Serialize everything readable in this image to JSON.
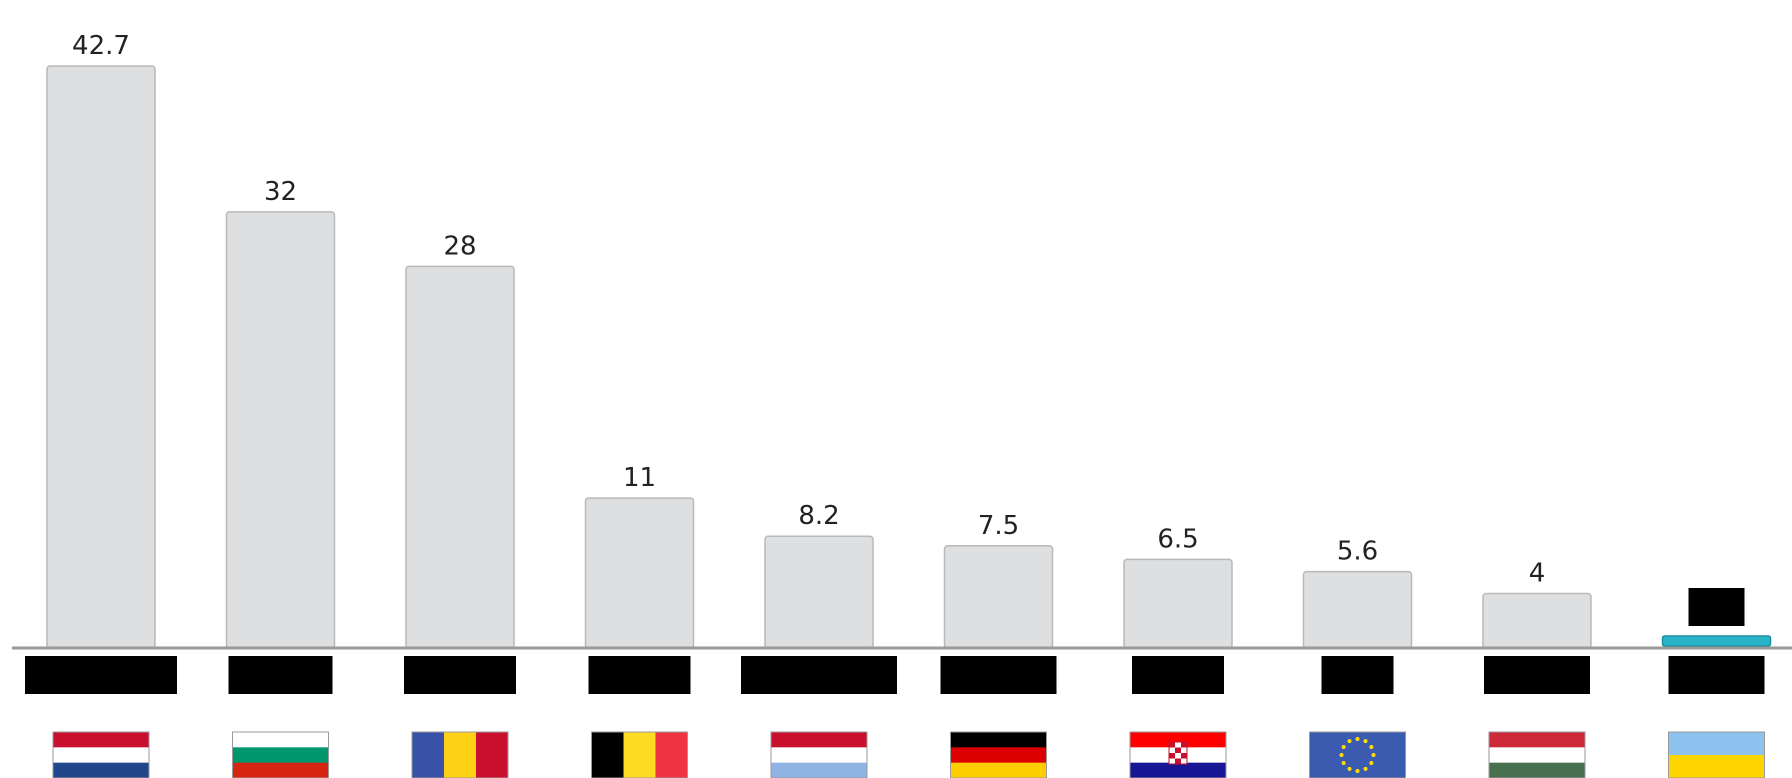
{
  "chart_data": {
    "type": "bar",
    "categories": [
      "",
      "",
      "",
      "",
      "",
      "",
      "",
      "",
      "",
      ""
    ],
    "values": [
      42.7,
      32,
      28,
      11,
      8.2,
      7.5,
      6.5,
      5.6,
      4,
      null
    ],
    "value_labels": [
      "42.7",
      "32",
      "28",
      "11",
      "8.2",
      "7.5",
      "6.5",
      "5.6",
      "4",
      ""
    ],
    "highlight_index": 9,
    "flags": [
      "netherlands-flag",
      "bulgaria-flag",
      "romania-flag",
      "belgium-flag",
      "luxembourg-flag",
      "germany-flag",
      "croatia-flag",
      "eu-flag",
      "hungary-flag",
      "ukraine-flag"
    ],
    "title": "",
    "xlabel": "",
    "ylabel": "",
    "ylim": [
      0,
      42.7
    ],
    "grid": false,
    "colors": {
      "bar": "#dedfe0",
      "highlight": "#29b3c6"
    }
  }
}
